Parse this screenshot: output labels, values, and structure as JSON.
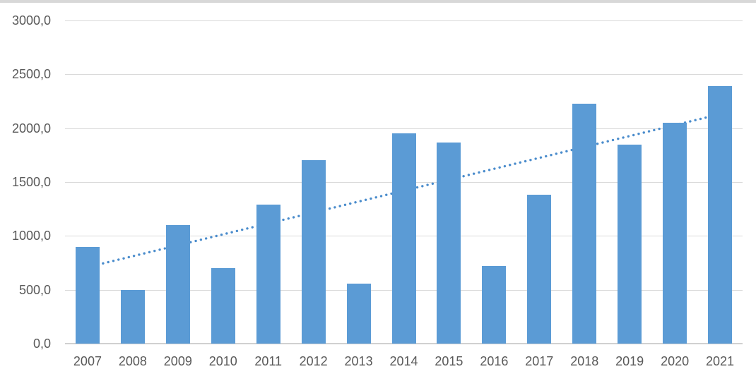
{
  "chart_data": {
    "type": "bar",
    "title": "",
    "xlabel": "",
    "ylabel": "",
    "categories": [
      "2007",
      "2008",
      "2009",
      "2010",
      "2011",
      "2012",
      "2013",
      "2014",
      "2015",
      "2016",
      "2017",
      "2018",
      "2019",
      "2020",
      "2021"
    ],
    "values": [
      900,
      500,
      1100,
      700,
      1290,
      1700,
      560,
      1950,
      1870,
      720,
      1380,
      2230,
      1850,
      2050,
      2390
    ],
    "ylim": [
      0,
      3000
    ],
    "y_tick_interval": 500,
    "y_ticks": [
      "3000,0",
      "2500,0",
      "2000,0",
      "1500,0",
      "1000,0",
      "500,0",
      "0,0"
    ],
    "y_tick_values": [
      3000,
      2500,
      2000,
      1500,
      1000,
      500,
      0
    ],
    "grid": true,
    "legend": "none",
    "number_format": "decimal-comma",
    "trendline": {
      "type": "linear",
      "style": "dotted",
      "start_value": 710,
      "end_value": 2130,
      "drawn_behind_bars": true
    },
    "colors": {
      "bar": "#5B9BD5",
      "trendline": "#4A8CCC",
      "gridline": "#D9D9D9",
      "axis_line": "#D0D0D0",
      "tick_text": "#595959",
      "background": "#FFFFFF",
      "top_edge_strip": "#D8D8D8"
    }
  }
}
